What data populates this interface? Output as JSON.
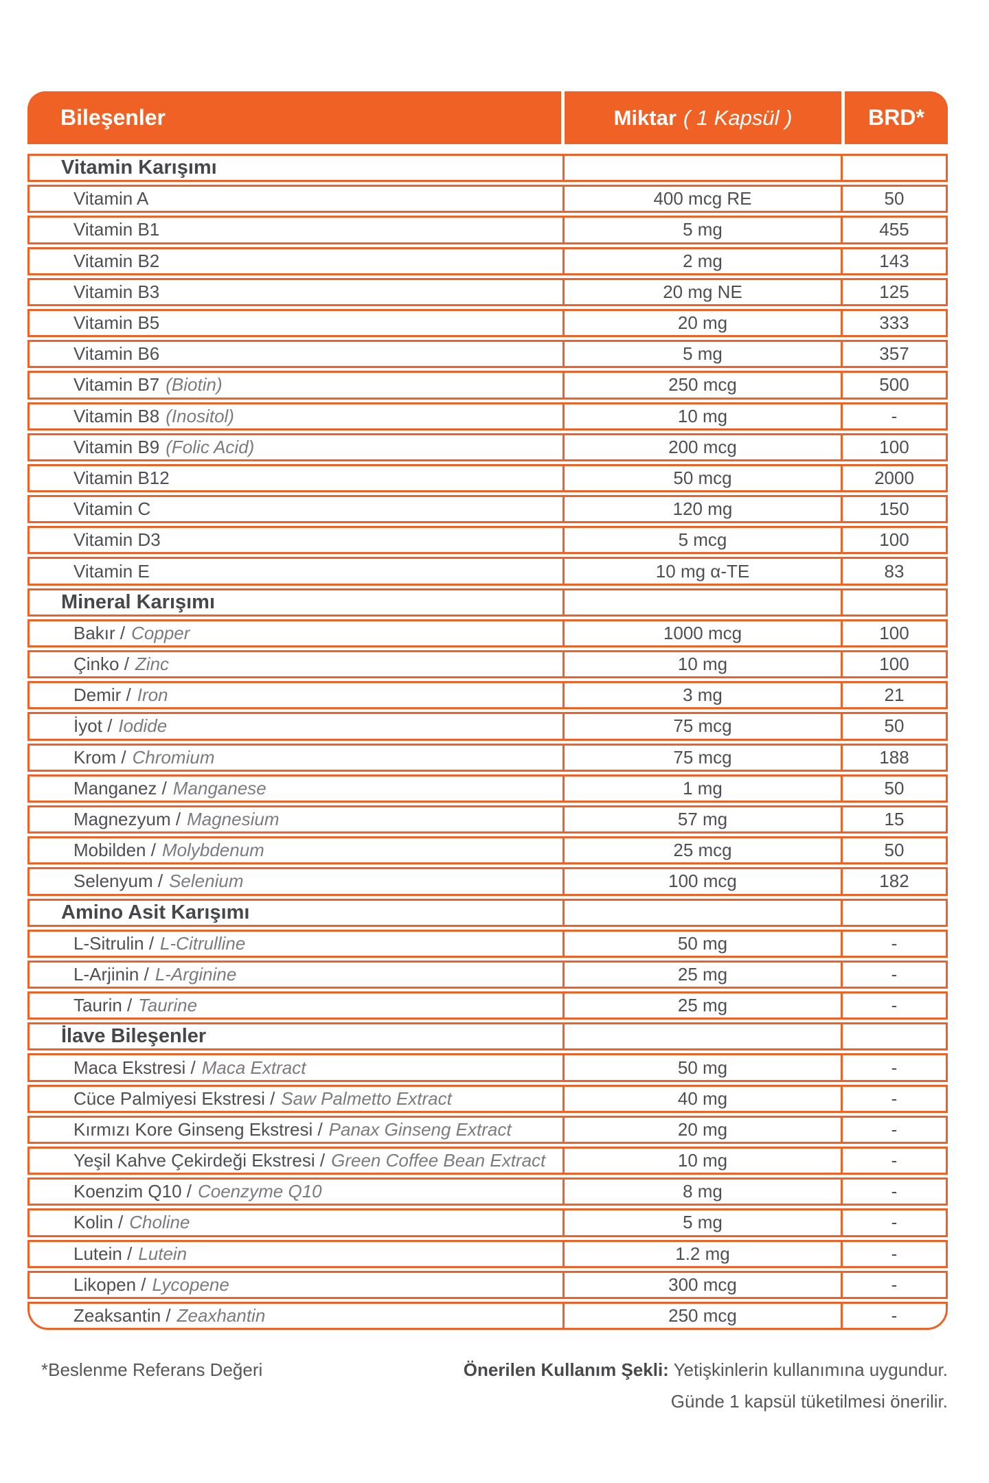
{
  "colors": {
    "accent": "#EF6124",
    "header_text": "#FFFFFF",
    "item_text": "#4E4F52",
    "item_alt_text": "#7A7B7E",
    "section_text": "#45474A"
  },
  "header": {
    "ingredients": "Bileşenler",
    "amount_bold": "Miktar",
    "amount_italic": "( 1 Kapsül )",
    "brd": "BRD*"
  },
  "table": {
    "rows": [
      {
        "type": "section",
        "name": "Vitamin Karışımı",
        "alt": "",
        "amount": "",
        "brd": ""
      },
      {
        "type": "item",
        "name": "Vitamin A",
        "alt": "",
        "amount": "400 mcg RE",
        "brd": "50"
      },
      {
        "type": "item",
        "name": "Vitamin B1",
        "alt": "",
        "amount": "5 mg",
        "brd": "455"
      },
      {
        "type": "item",
        "name": "Vitamin B2",
        "alt": "",
        "amount": "2 mg",
        "brd": "143"
      },
      {
        "type": "item",
        "name": "Vitamin B3",
        "alt": "",
        "amount": "20 mg NE",
        "brd": "125"
      },
      {
        "type": "item",
        "name": "Vitamin B5",
        "alt": "",
        "amount": "20 mg",
        "brd": "333"
      },
      {
        "type": "item",
        "name": "Vitamin B6",
        "alt": "",
        "amount": "5 mg",
        "brd": "357"
      },
      {
        "type": "item",
        "name": "Vitamin B7",
        "alt": "(Biotin)",
        "amount": "250 mcg",
        "brd": "500"
      },
      {
        "type": "item",
        "name": "Vitamin B8",
        "alt": "(Inositol)",
        "amount": "10 mg",
        "brd": "-"
      },
      {
        "type": "item",
        "name": "Vitamin B9",
        "alt": "(Folic Acid)",
        "amount": "200 mcg",
        "brd": "100"
      },
      {
        "type": "item",
        "name": "Vitamin B12",
        "alt": "",
        "amount": "50 mcg",
        "brd": "2000"
      },
      {
        "type": "item",
        "name": "Vitamin C",
        "alt": "",
        "amount": "120 mg",
        "brd": "150"
      },
      {
        "type": "item",
        "name": "Vitamin D3",
        "alt": "",
        "amount": "5 mcg",
        "brd": "100"
      },
      {
        "type": "item",
        "name": "Vitamin E",
        "alt": "",
        "amount": "10 mg α-TE",
        "brd": "83"
      },
      {
        "type": "section",
        "name": "Mineral Karışımı",
        "alt": "",
        "amount": "",
        "brd": ""
      },
      {
        "type": "item",
        "name": "Bakır /",
        "alt": "Copper",
        "amount": "1000 mcg",
        "brd": "100"
      },
      {
        "type": "item",
        "name": "Çinko /",
        "alt": "Zinc",
        "amount": "10 mg",
        "brd": "100"
      },
      {
        "type": "item",
        "name": "Demir /",
        "alt": "Iron",
        "amount": "3 mg",
        "brd": "21"
      },
      {
        "type": "item",
        "name": "İyot /",
        "alt": "Iodide",
        "amount": "75 mcg",
        "brd": "50"
      },
      {
        "type": "item",
        "name": "Krom /",
        "alt": "Chromium",
        "amount": "75 mcg",
        "brd": "188"
      },
      {
        "type": "item",
        "name": "Manganez /",
        "alt": "Manganese",
        "amount": "1 mg",
        "brd": "50"
      },
      {
        "type": "item",
        "name": "Magnezyum /",
        "alt": "Magnesium",
        "amount": "57 mg",
        "brd": "15"
      },
      {
        "type": "item",
        "name": "Mobilden /",
        "alt": "Molybdenum",
        "amount": "25 mcg",
        "brd": "50"
      },
      {
        "type": "item",
        "name": "Selenyum /",
        "alt": "Selenium",
        "amount": "100 mcg",
        "brd": "182"
      },
      {
        "type": "section",
        "name": "Amino Asit Karışımı",
        "alt": "",
        "amount": "",
        "brd": ""
      },
      {
        "type": "item",
        "name": "L-Sitrulin /",
        "alt": "L-Citrulline",
        "amount": "50 mg",
        "brd": "-"
      },
      {
        "type": "item",
        "name": "L-Arjinin /",
        "alt": "L-Arginine",
        "amount": "25 mg",
        "brd": "-"
      },
      {
        "type": "item",
        "name": "Taurin /",
        "alt": "Taurine",
        "amount": "25 mg",
        "brd": "-"
      },
      {
        "type": "section",
        "name": "İlave Bileşenler",
        "alt": "",
        "amount": "",
        "brd": ""
      },
      {
        "type": "item",
        "name": "Maca Ekstresi /",
        "alt": "Maca Extract",
        "amount": "50 mg",
        "brd": "-"
      },
      {
        "type": "item",
        "name": "Cüce Palmiyesi Ekstresi /",
        "alt": "Saw Palmetto Extract",
        "amount": "40 mg",
        "brd": "-"
      },
      {
        "type": "item",
        "name": "Kırmızı Kore Ginseng Ekstresi /",
        "alt": "Panax Ginseng Extract",
        "amount": "20 mg",
        "brd": "-"
      },
      {
        "type": "item",
        "name": "Yeşil Kahve Çekirdeği Ekstresi /",
        "alt": "Green Coffee Bean Extract",
        "amount": "10 mg",
        "brd": "-"
      },
      {
        "type": "item",
        "name": "Koenzim Q10 /",
        "alt": "Coenzyme Q10",
        "amount": "8 mg",
        "brd": "-"
      },
      {
        "type": "item",
        "name": "Kolin /",
        "alt": "Choline",
        "amount": "5 mg",
        "brd": "-"
      },
      {
        "type": "item",
        "name": "Lutein /",
        "alt": "Lutein",
        "amount": "1.2 mg",
        "brd": "-"
      },
      {
        "type": "item",
        "name": "Likopen /",
        "alt": "Lycopene",
        "amount": "300 mcg",
        "brd": "-"
      },
      {
        "type": "item",
        "name": "Zeaksantin /",
        "alt": "Zeaxhantin",
        "amount": "250 mcg",
        "brd": "-"
      }
    ]
  },
  "footer": {
    "note": "*Beslenme Referans Değeri",
    "usage_bold": "Önerilen Kullanım Şekli:",
    "usage_line1": "Yetişkinlerin kullanımına uygundur.",
    "usage_line2": "Günde 1 kapsül tüketilmesi önerilir."
  }
}
